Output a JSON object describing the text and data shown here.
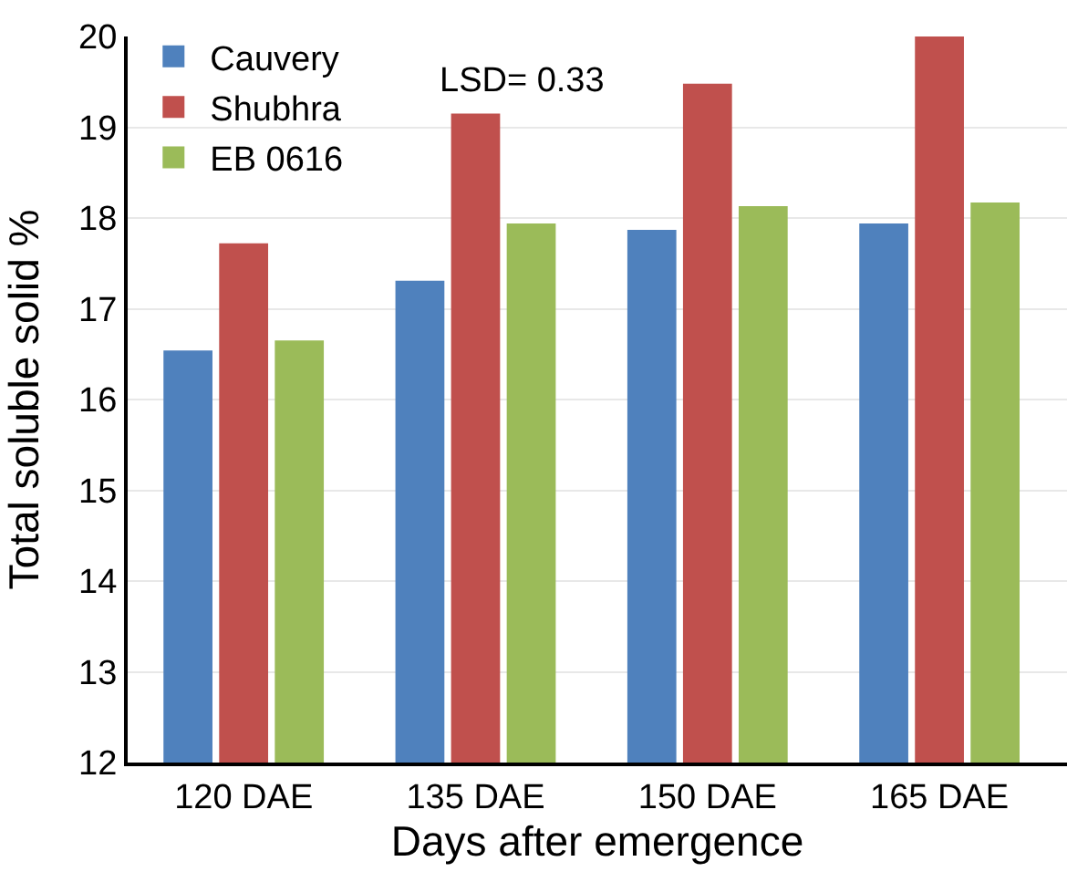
{
  "chart_data": {
    "type": "bar",
    "xlabel": "Days after emergence",
    "ylabel": "Total soluble solid %",
    "categories": [
      "120 DAE",
      "135 DAE",
      "150 DAE",
      "165 DAE"
    ],
    "series": [
      {
        "name": "Cauvery",
        "color": "#4f81bd",
        "values": [
          16.54,
          17.31,
          17.87,
          17.94
        ]
      },
      {
        "name": "Shubhra",
        "color": "#c0504d",
        "values": [
          17.72,
          19.15,
          19.48,
          20.0
        ]
      },
      {
        "name": "EB 0616",
        "color": "#9bbb59",
        "values": [
          16.65,
          17.94,
          18.13,
          18.17
        ]
      }
    ],
    "ylim": [
      12,
      20
    ],
    "yticks": [
      12,
      13,
      14,
      15,
      16,
      17,
      18,
      19,
      20
    ],
    "grid": "y",
    "legend": "top left",
    "annotations": [
      "LSD= 0.33"
    ]
  }
}
